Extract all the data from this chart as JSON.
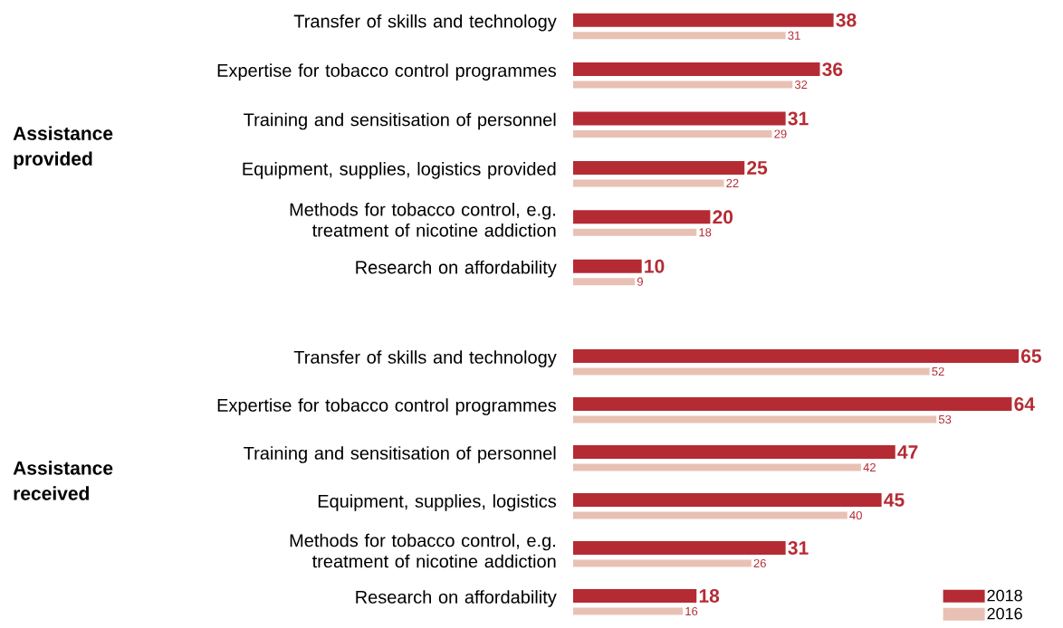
{
  "chart_data": [
    {
      "type": "bar",
      "orientation": "horizontal",
      "ylabel": "Assistance provided",
      "categories": [
        "Transfer of skills and technology",
        "Expertise for tobacco control programmes",
        "Training and sensitisation of personnel",
        "Equipment, supplies, logistics provided",
        "Methods for tobacco control, e.g. treatment of nicotine addiction",
        "Research on affordability"
      ],
      "series": [
        {
          "color": "#b52b34",
          "values": [
            38,
            36,
            31,
            25,
            20,
            10
          ]
        },
        {
          "color": "#e8c1b4",
          "values": [
            31,
            32,
            29,
            22,
            18,
            9
          ]
        }
      ],
      "data_labels": true,
      "legend": false
    },
    {
      "type": "bar",
      "orientation": "horizontal",
      "ylabel": "Assistance received",
      "categories": [
        "Transfer of skills and technology",
        "Expertise for tobacco control programmes",
        "Training and sensitisation of personnel",
        "Equipment, supplies, logistics",
        "Methods for tobacco control, e.g. treatment of nicotine addiction",
        "Research on affordability"
      ],
      "series": [
        {
          "name": "2018",
          "color": "#b52b34",
          "values": [
            65,
            64,
            47,
            45,
            31,
            18
          ]
        },
        {
          "name": "2016",
          "color": "#e8c1b4",
          "values": [
            52,
            53,
            42,
            40,
            26,
            16
          ]
        }
      ],
      "data_labels": true,
      "legend": "bottom right"
    }
  ]
}
